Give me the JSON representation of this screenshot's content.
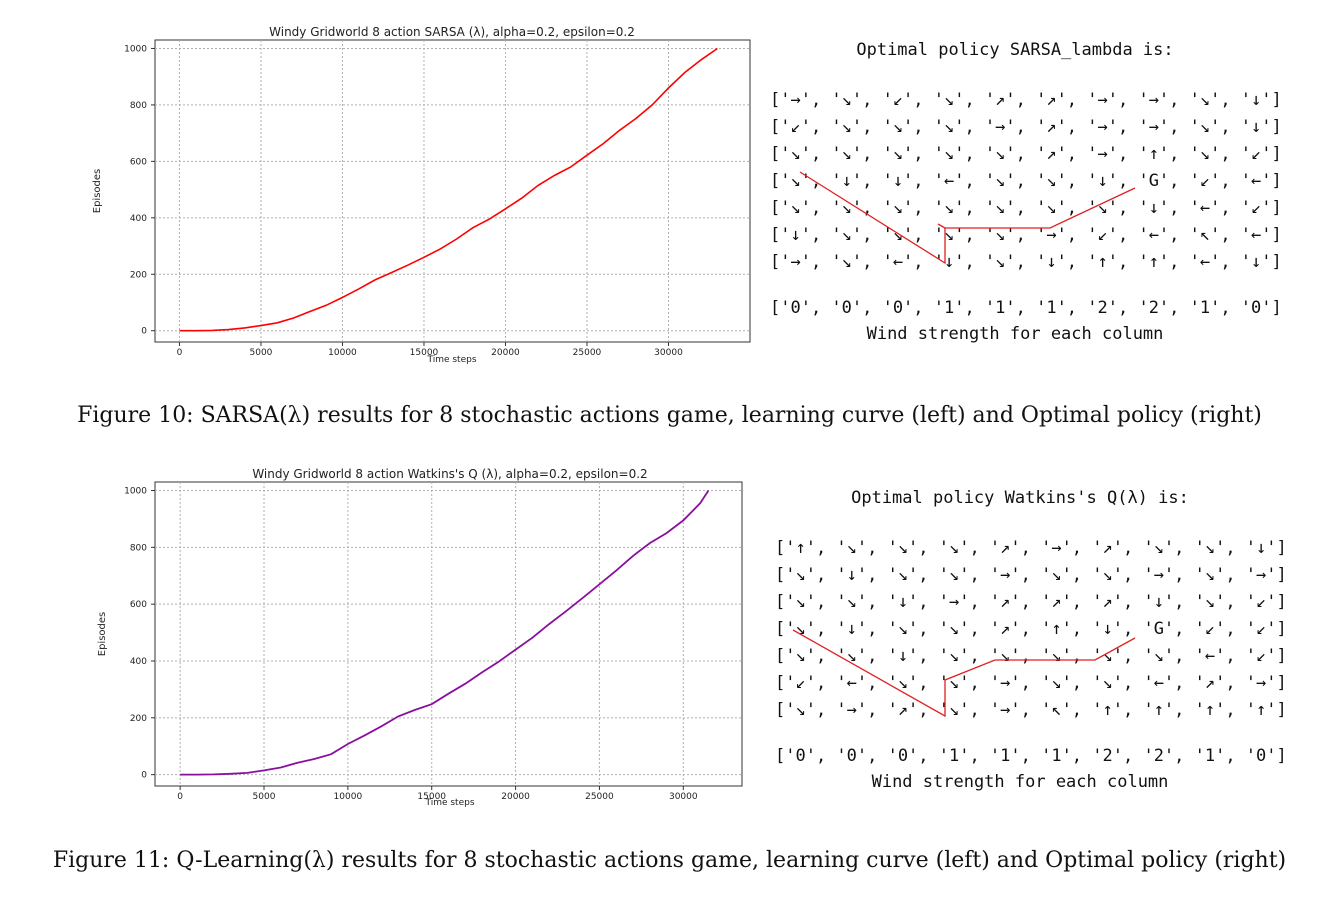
{
  "figures": [
    {
      "chart_data": {
        "type": "line",
        "title": "Windy Gridworld 8 action SARSA (λ), alpha=0.2, epsilon=0.2",
        "xlabel": "Time steps",
        "ylabel": "Episodes",
        "xlim": [
          -1500,
          35000
        ],
        "ylim": [
          -40,
          1030
        ],
        "xticks": [
          0,
          5000,
          10000,
          15000,
          20000,
          25000,
          30000
        ],
        "yticks": [
          0,
          200,
          400,
          600,
          800,
          1000
        ],
        "grid": true,
        "series": [
          {
            "color": "#ff0000",
            "x": [
              0,
              1000,
              2000,
              3000,
              4000,
              5000,
              6000,
              7000,
              8000,
              9000,
              10000,
              11000,
              12000,
              13000,
              14000,
              15000,
              16000,
              17000,
              18000,
              19000,
              20000,
              21000,
              22000,
              23000,
              24000,
              25000,
              26000,
              27000,
              28000,
              29000,
              30000,
              31000,
              32000,
              33000
            ],
            "y": [
              0,
              0,
              1,
              4,
              10,
              18,
              28,
              45,
              68,
              90,
              118,
              148,
              180,
              206,
              232,
              260,
              290,
              325,
              365,
              395,
              432,
              470,
              515,
              550,
              580,
              622,
              663,
              710,
              752,
              800,
              860,
              915,
              960,
              1000
            ]
          }
        ]
      },
      "policy": {
        "title": "Optimal policy SARSA_lambda is:",
        "rows": [
          "['→', '↘', '↙', '↘', '↗', '↗', '→', '→', '↘', '↓']",
          "['↙', '↘', '↘', '↘', '→', '↗', '→', '→', '↘', '↓']",
          "['↘', '↘', '↘', '↘', '↘', '↗', '→', '↑', '↘', '↙']",
          "['↘', '↓', '↓', '←', '↘', '↘', '↓', 'G', '↙', '←']",
          "['↘', '↘', '↘', '↘', '↘', '↘', '↘', '↓', '←', '↙']",
          "['↓', '↘', '↘', '↘', '↘', '→', '↙', '←', '↖', '←']",
          "['→', '↘', '←', '↓', '↘', '↓', '↑', '↑', '←', '↓']"
        ],
        "wind": "['0', '0', '0', '1', '1', '1', '2', '2', '1', '0']",
        "wind_caption": "Wind strength for each column"
      },
      "caption": "Figure 10: SARSA(λ) results for 8 stochastic actions game, learning curve (left) and Optimal policy (right)"
    },
    {
      "chart_data": {
        "type": "line",
        "title": "Windy Gridworld 8 action Watkins's Q (λ), alpha=0.2, epsilon=0.2",
        "xlabel": "Time steps",
        "ylabel": "Episodes",
        "xlim": [
          -1500,
          33500
        ],
        "ylim": [
          -40,
          1030
        ],
        "xticks": [
          0,
          5000,
          10000,
          15000,
          20000,
          25000,
          30000
        ],
        "yticks": [
          0,
          200,
          400,
          600,
          800,
          1000
        ],
        "grid": true,
        "series": [
          {
            "color": "#8a0f9f",
            "x": [
              0,
              1000,
              2000,
              3000,
              4000,
              5000,
              6000,
              7000,
              8000,
              9000,
              10000,
              11000,
              12000,
              13000,
              14000,
              15000,
              16000,
              17000,
              18000,
              19000,
              20000,
              21000,
              22000,
              23000,
              24000,
              25000,
              26000,
              27000,
              28000,
              29000,
              30000,
              31000,
              31500
            ],
            "y": [
              0,
              0,
              1,
              3,
              6,
              15,
              25,
              42,
              55,
              72,
              108,
              138,
              170,
              205,
              228,
              248,
              285,
              320,
              360,
              398,
              440,
              482,
              530,
              575,
              622,
              670,
              718,
              770,
              815,
              850,
              895,
              955,
              1000
            ]
          }
        ]
      },
      "policy": {
        "title": "Optimal policy Watkins's Q(λ) is:",
        "rows": [
          "['↑', '↘', '↘', '↘', '↗', '→', '↗', '↘', '↘', '↓']",
          "['↘', '↓', '↘', '↘', '→', '↘', '↘', '→', '↘', '→']",
          "['↘', '↘', '↓', '→', '↗', '↗', '↗', '↓', '↘', '↙']",
          "['↘', '↓', '↘', '↘', '↗', '↑', '↓', 'G', '↙', '↙']",
          "['↘', '↘', '↓', '↘', '↘', '↘', '↘', '↘', '←', '↙']",
          "['↙', '←', '↘', '↘', '→', '↘', '↘', '←', '↗', '→']",
          "['↘', '→', '↗', '↘', '→', '↖', '↑', '↑', '↑', '↑']"
        ],
        "wind": "['0', '0', '0', '1', '1', '1', '2', '2', '1', '0']",
        "wind_caption": "Wind strength for each column"
      },
      "caption": "Figure 11: Q-Learning(λ) results for 8 stochastic actions game, learning curve (left) and Optimal policy (right)"
    }
  ],
  "colors": {
    "path_line": "#e02020",
    "grid": "#b0b0b0"
  }
}
